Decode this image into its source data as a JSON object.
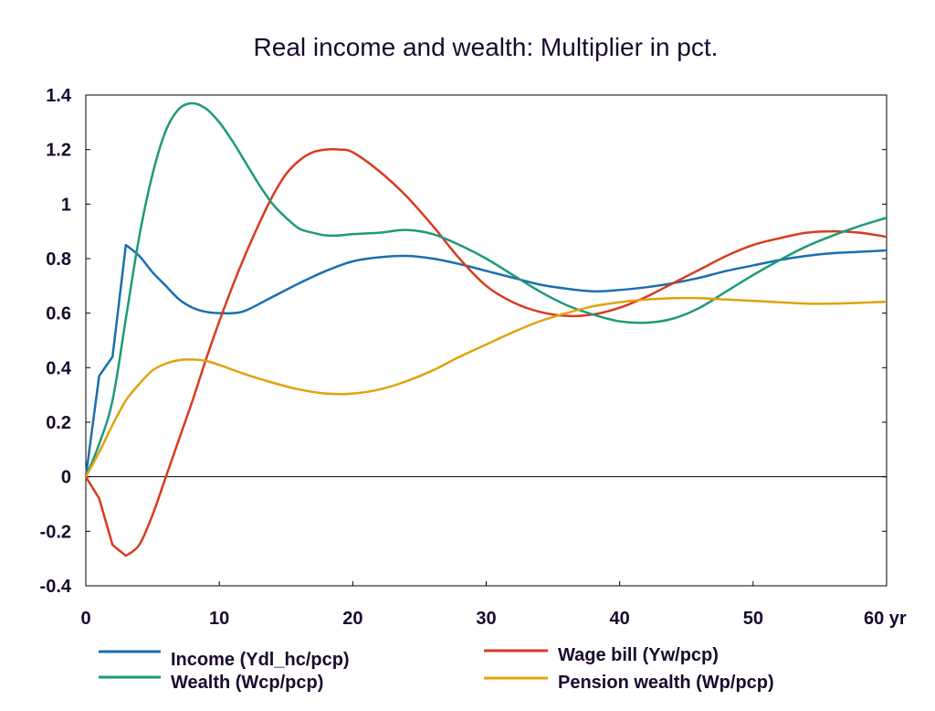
{
  "chart_data": {
    "type": "line",
    "title": "Real income and wealth: Multiplier in pct.",
    "xlabel": "",
    "ylabel": "",
    "x_unit_label": "yr",
    "xlim": [
      0,
      60
    ],
    "ylim": [
      -0.4,
      1.4
    ],
    "xticks": [
      0,
      10,
      20,
      30,
      40,
      50,
      60
    ],
    "xtick_labels": [
      "0",
      "10",
      "20",
      "30",
      "40",
      "50",
      "60 yr"
    ],
    "yticks": [
      -0.4,
      -0.2,
      0,
      0.2,
      0.4,
      0.6,
      0.8,
      1,
      1.2,
      1.4
    ],
    "ytick_labels": [
      "-0.4",
      "-0.2",
      "0",
      "0.2",
      "0.4",
      "0.6",
      "0.8",
      "1",
      "1.2",
      "1.4"
    ],
    "grid": false,
    "zero_line": true,
    "legend_position": "bottom",
    "series": [
      {
        "name": "Income (Ydl_hc/pcp)",
        "color": "#1a6faf",
        "x": [
          0,
          1,
          2,
          3,
          4,
          5,
          6,
          7,
          8,
          9,
          10,
          11,
          12,
          14,
          16,
          18,
          20,
          22,
          24,
          26,
          28,
          30,
          32,
          34,
          36,
          38,
          40,
          42,
          44,
          46,
          48,
          50,
          52,
          54,
          56,
          58,
          60
        ],
        "y": [
          0,
          0.37,
          0.44,
          0.85,
          0.81,
          0.75,
          0.7,
          0.65,
          0.62,
          0.605,
          0.6,
          0.6,
          0.61,
          0.66,
          0.71,
          0.755,
          0.79,
          0.805,
          0.81,
          0.8,
          0.78,
          0.755,
          0.73,
          0.705,
          0.69,
          0.68,
          0.685,
          0.695,
          0.71,
          0.73,
          0.755,
          0.775,
          0.795,
          0.81,
          0.82,
          0.825,
          0.83
        ]
      },
      {
        "name": "Wage bill (Yw/pcp)",
        "color": "#d93a20",
        "x": [
          0,
          1,
          2,
          3,
          4,
          5,
          6,
          7,
          8,
          9,
          10,
          11,
          12,
          13,
          14,
          15,
          16,
          17,
          18,
          19,
          20,
          22,
          24,
          26,
          28,
          30,
          32,
          34,
          36,
          38,
          40,
          42,
          44,
          46,
          48,
          50,
          52,
          54,
          56,
          58,
          60
        ],
        "y": [
          0,
          -0.08,
          -0.25,
          -0.29,
          -0.25,
          -0.14,
          0.0,
          0.14,
          0.28,
          0.43,
          0.57,
          0.7,
          0.82,
          0.93,
          1.03,
          1.11,
          1.16,
          1.19,
          1.2,
          1.2,
          1.19,
          1.12,
          1.03,
          0.92,
          0.8,
          0.7,
          0.64,
          0.605,
          0.59,
          0.595,
          0.62,
          0.66,
          0.71,
          0.76,
          0.81,
          0.85,
          0.875,
          0.895,
          0.9,
          0.895,
          0.88
        ]
      },
      {
        "name": "Wealth (Wcp/pcp)",
        "color": "#1f9a77",
        "x": [
          0,
          1,
          2,
          3,
          4,
          5,
          6,
          7,
          8,
          9,
          10,
          11,
          12,
          13,
          14,
          15,
          16,
          17,
          18,
          19,
          20,
          22,
          24,
          26,
          28,
          30,
          32,
          34,
          36,
          38,
          40,
          42,
          44,
          46,
          48,
          50,
          52,
          54,
          56,
          58,
          60
        ],
        "y": [
          0,
          0.12,
          0.28,
          0.58,
          0.88,
          1.11,
          1.27,
          1.35,
          1.37,
          1.35,
          1.3,
          1.23,
          1.15,
          1.07,
          1.0,
          0.95,
          0.91,
          0.895,
          0.885,
          0.885,
          0.89,
          0.895,
          0.905,
          0.89,
          0.85,
          0.8,
          0.74,
          0.68,
          0.63,
          0.595,
          0.57,
          0.565,
          0.58,
          0.62,
          0.68,
          0.74,
          0.795,
          0.845,
          0.885,
          0.92,
          0.95
        ]
      },
      {
        "name": "Pension wealth (Wp/pcp)",
        "color": "#e0a20f",
        "x": [
          0,
          1,
          2,
          3,
          4,
          5,
          6,
          7,
          8,
          9,
          10,
          12,
          14,
          16,
          18,
          20,
          22,
          24,
          26,
          28,
          30,
          32,
          34,
          36,
          38,
          40,
          42,
          44,
          46,
          48,
          50,
          52,
          54,
          56,
          58,
          60
        ],
        "y": [
          0,
          0.09,
          0.19,
          0.28,
          0.34,
          0.39,
          0.415,
          0.428,
          0.43,
          0.425,
          0.41,
          0.375,
          0.345,
          0.32,
          0.305,
          0.305,
          0.32,
          0.35,
          0.39,
          0.44,
          0.485,
          0.53,
          0.57,
          0.6,
          0.625,
          0.64,
          0.65,
          0.655,
          0.655,
          0.65,
          0.645,
          0.64,
          0.635,
          0.635,
          0.638,
          0.642
        ]
      }
    ]
  }
}
